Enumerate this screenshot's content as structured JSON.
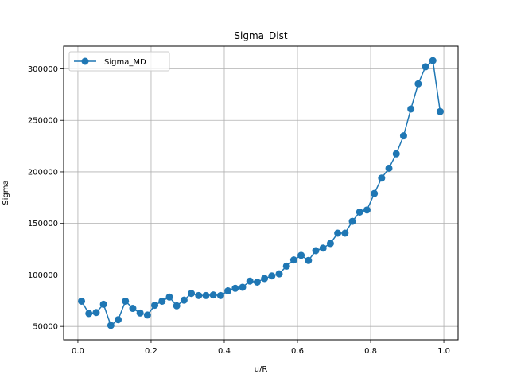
{
  "chart_data": {
    "type": "line",
    "title": "Sigma_Dist",
    "xlabel": "u/R",
    "ylabel": "Sigma",
    "xlim": [
      -0.039,
      1.039
    ],
    "ylim": [
      37000,
      322000
    ],
    "xticks": [
      0.0,
      0.2,
      0.4,
      0.6,
      0.8,
      1.0
    ],
    "xtick_labels": [
      "0.0",
      "0.2",
      "0.4",
      "0.6",
      "0.8",
      "1.0"
    ],
    "yticks": [
      50000,
      100000,
      150000,
      200000,
      250000,
      300000
    ],
    "ytick_labels": [
      "50000",
      "100000",
      "150000",
      "200000",
      "250000",
      "300000"
    ],
    "grid": true,
    "legend_position": "top-left",
    "series": [
      {
        "name": "Sigma_MD",
        "color": "#1f77b4",
        "marker": "circle",
        "x": [
          0.01,
          0.03,
          0.05,
          0.07,
          0.09,
          0.11,
          0.13,
          0.15,
          0.17,
          0.19,
          0.21,
          0.23,
          0.25,
          0.27,
          0.29,
          0.31,
          0.33,
          0.35,
          0.37,
          0.39,
          0.41,
          0.43,
          0.45,
          0.47,
          0.49,
          0.51,
          0.53,
          0.55,
          0.57,
          0.59,
          0.61,
          0.63,
          0.65,
          0.67,
          0.69,
          0.71,
          0.73,
          0.75,
          0.77,
          0.79,
          0.81,
          0.83,
          0.85,
          0.87,
          0.89,
          0.91,
          0.93,
          0.95,
          0.97,
          0.99
        ],
        "y": [
          74500,
          62500,
          63500,
          71500,
          51000,
          56500,
          74500,
          67500,
          63000,
          61000,
          70500,
          74500,
          78500,
          70000,
          75500,
          82000,
          80000,
          80000,
          80500,
          80000,
          84500,
          87000,
          88000,
          94000,
          93000,
          96500,
          99000,
          101000,
          108500,
          114500,
          119000,
          114000,
          123500,
          126000,
          130500,
          140500,
          140500,
          152000,
          161000,
          163000,
          179000,
          194000,
          203500,
          217500,
          235000,
          261000,
          285500,
          302000,
          308000,
          258500
        ]
      }
    ]
  }
}
